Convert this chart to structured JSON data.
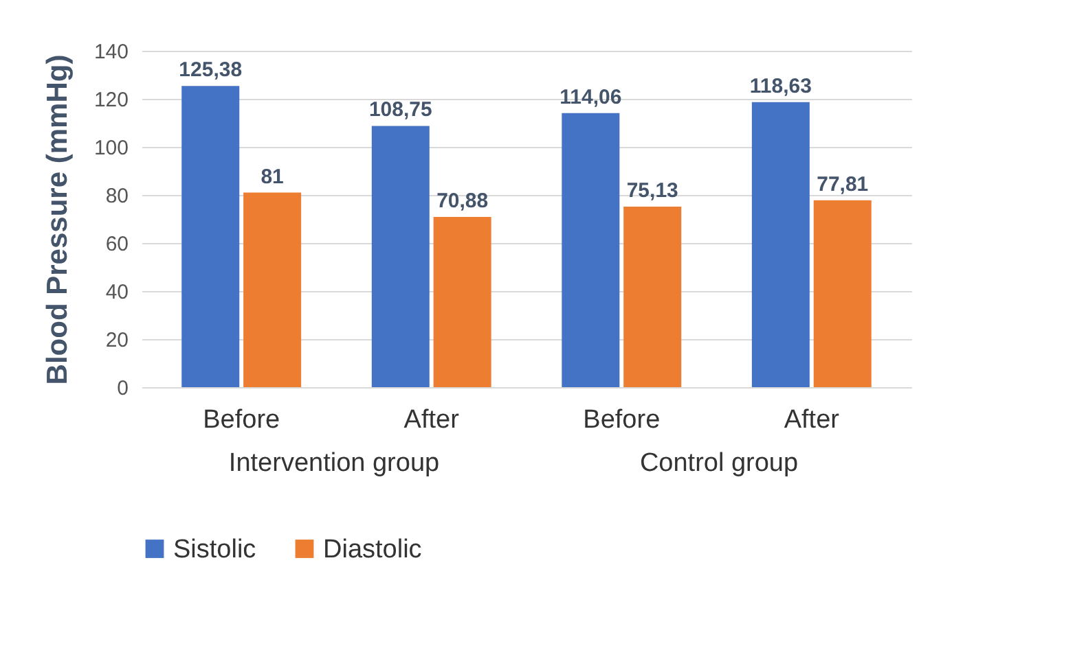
{
  "chart_data": {
    "type": "bar",
    "ylabel": "Blood Pressure (mmHg)",
    "categories": [
      "Before",
      "After",
      "Before",
      "After"
    ],
    "series": [
      {
        "name": "Sistolic",
        "color": "#4472c4",
        "values": [
          125.38,
          108.75,
          114.06,
          118.63
        ],
        "value_labels": [
          "125,38",
          "108,75",
          "114,06",
          "118,63"
        ]
      },
      {
        "name": "Diastolic",
        "color": "#ed7d31",
        "values": [
          81,
          70.88,
          75.13,
          77.81
        ],
        "value_labels": [
          "81",
          "70,88",
          "75,13",
          "77,81"
        ]
      }
    ],
    "annotations": [
      "Intervention group",
      "Control group"
    ],
    "ylim": [
      0,
      140
    ],
    "yticks": [
      0,
      20,
      40,
      60,
      80,
      100,
      120,
      140
    ],
    "grid": "y",
    "legend": "bottom"
  }
}
